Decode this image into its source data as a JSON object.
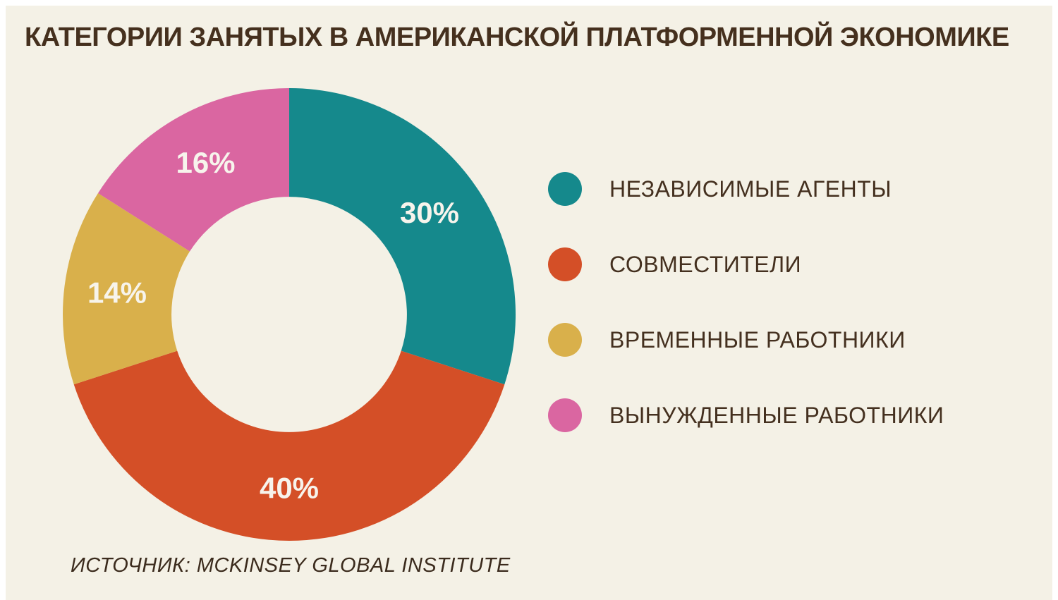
{
  "page": {
    "title": "КАТЕГОРИИ ЗАНЯТЫХ В АМЕРИКАНСКОЙ ПЛАТФОРМЕННОЙ ЭКОНОМИКЕ",
    "source": "ИСТОЧНИК: MCKINSEY GLOBAL INSTITUTE",
    "background_color": "#f4f1e6",
    "frame_color": "#ffffff",
    "title_color": "#45301e"
  },
  "chart_data": {
    "type": "pie",
    "variant": "donut",
    "title": "КАТЕГОРИИ ЗАНЯТЫХ В АМЕРИКАНСКОЙ ПЛАТФОРМЕННОЙ ЭКОНОМИКЕ",
    "categories": [
      "НЕЗАВИСИМЫЕ АГЕНТЫ",
      "СОВМЕСТИТЕЛИ",
      "ВРЕМЕННЫЕ РАБОТНИКИ",
      "ВЫНУЖДЕННЫЕ РАБОТНИКИ"
    ],
    "values": [
      30,
      40,
      14,
      16
    ],
    "labels": [
      "30%",
      "40%",
      "14%",
      "16%"
    ],
    "colors": [
      "#15898c",
      "#d44f27",
      "#d9b04b",
      "#da66a1"
    ],
    "start_angle_deg": 0,
    "direction": "clockwise",
    "inner_radius_ratio": 0.52,
    "label_color": "#f7f4ec",
    "legend_position": "right",
    "source": "ИСТОЧНИК: MCKINSEY GLOBAL INSTITUTE"
  },
  "legend": {
    "items": [
      {
        "label": "НЕЗАВИСИМЫЕ АГЕНТЫ",
        "color": "#15898c",
        "swatch": "circle"
      },
      {
        "label": "СОВМЕСТИТЕЛИ",
        "color": "#d44f27",
        "swatch": "circle"
      },
      {
        "label": "ВРЕМЕННЫЕ РАБОТНИКИ",
        "color": "#d9b04b",
        "swatch": "circle"
      },
      {
        "label": "ВЫНУЖДЕННЫЕ РАБОТНИКИ",
        "color": "#da66a1",
        "swatch": "circle"
      }
    ]
  }
}
